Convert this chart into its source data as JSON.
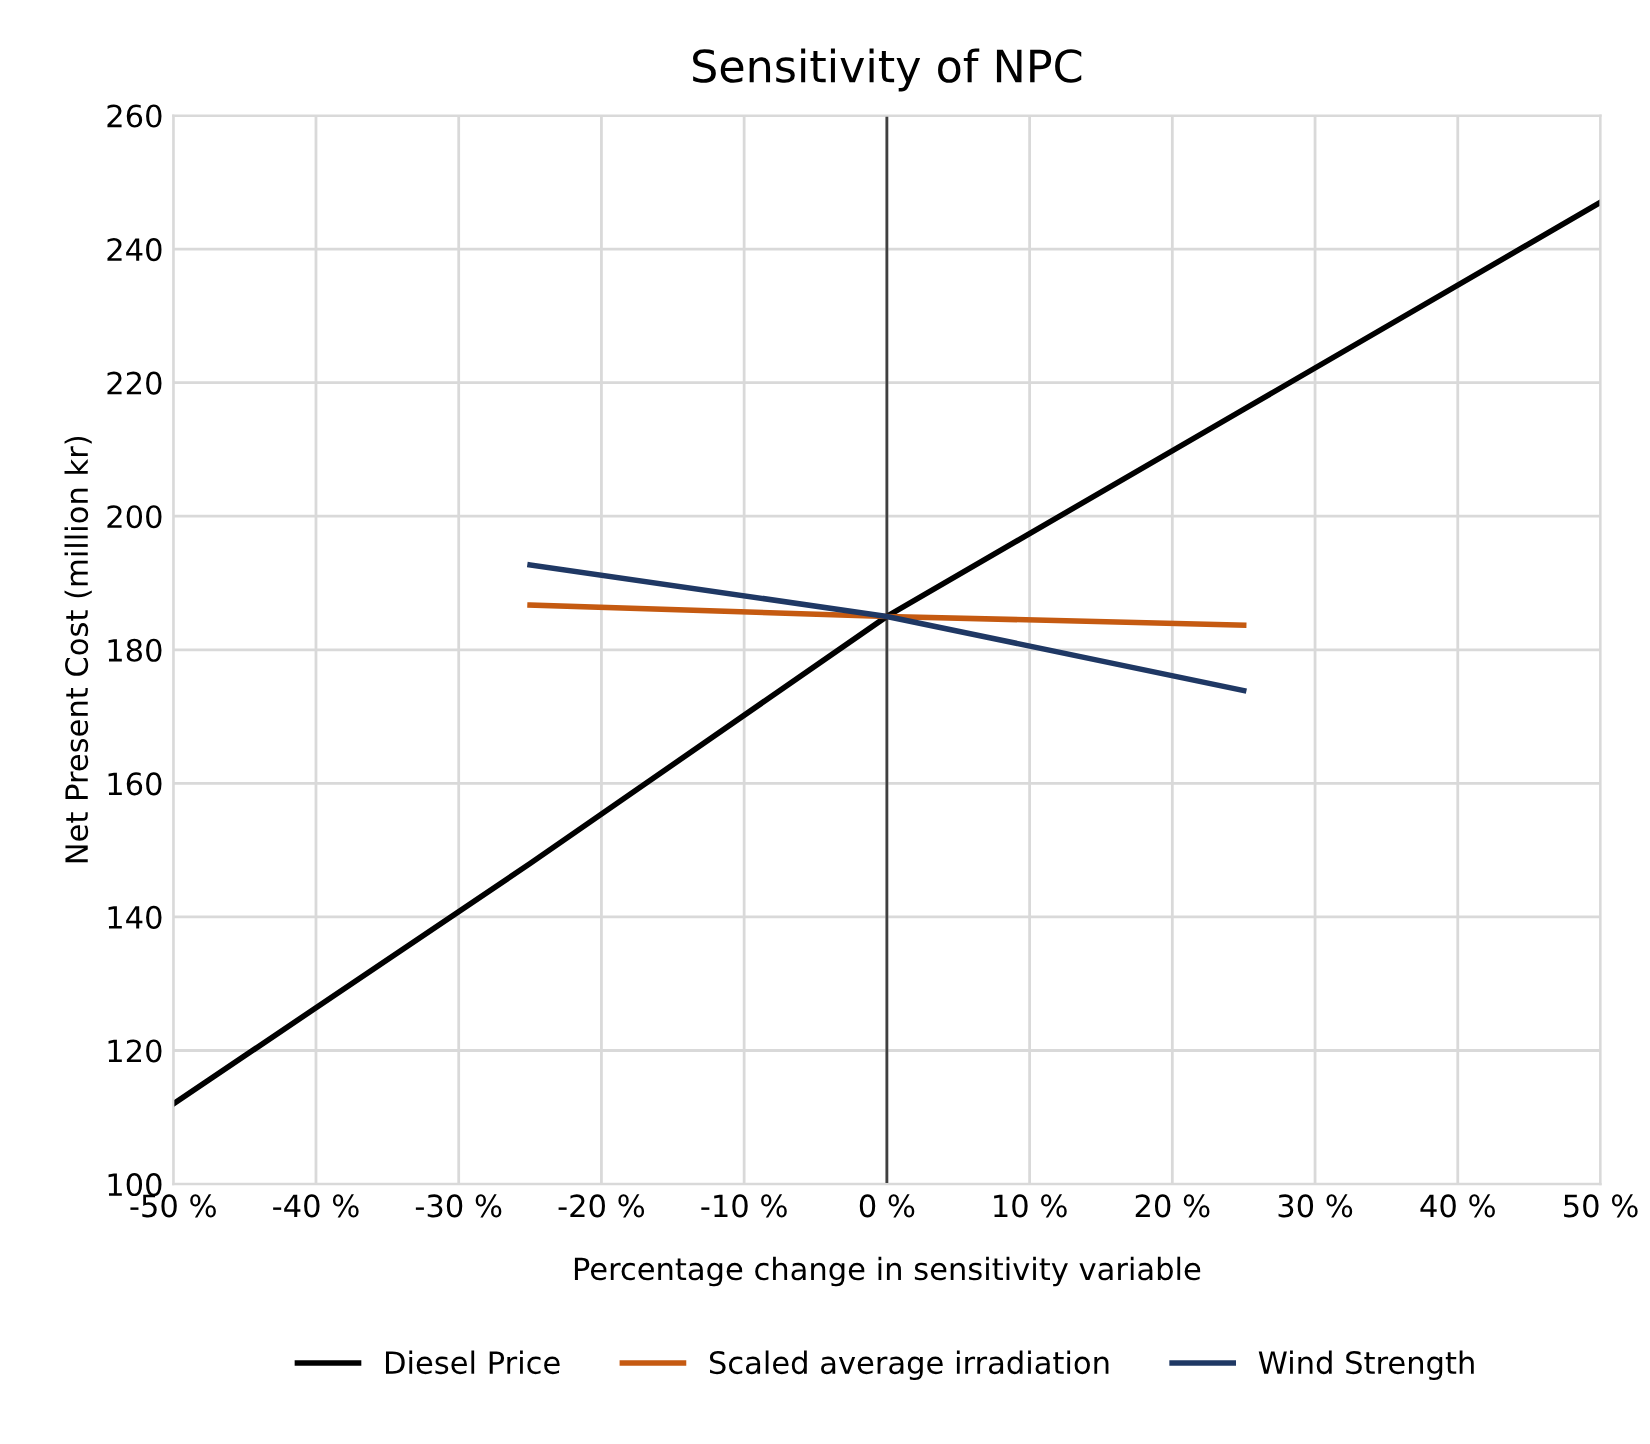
{
  "chart_data": {
    "type": "line",
    "title": "Sensitivity of NPC",
    "xlabel": "Percentage change in sensitivity variable",
    "ylabel": "Net Present Cost (million kr)",
    "series": [
      {
        "name": "Diesel Price",
        "color": "#000000",
        "x": [
          -50,
          -25,
          0,
          25,
          50
        ],
        "values": [
          112,
          148,
          185,
          216,
          247
        ]
      },
      {
        "name": "Scaled average irradiation",
        "color": "#c55a11",
        "x": [
          -25,
          0,
          25
        ],
        "values": [
          186.7,
          185,
          183.7
        ]
      },
      {
        "name": "Wind Strength",
        "color": "#1f3864",
        "x": [
          -25,
          0,
          25
        ],
        "values": [
          192.7,
          185,
          173.9
        ]
      }
    ],
    "xlim": [
      -50,
      50
    ],
    "xticks": [
      {
        "value": -50,
        "label": "-50 %"
      },
      {
        "value": -40,
        "label": "-40 %"
      },
      {
        "value": -30,
        "label": "-30 %"
      },
      {
        "value": -20,
        "label": "-20 %"
      },
      {
        "value": -10,
        "label": "-10 %"
      },
      {
        "value": 0,
        "label": "0 %"
      },
      {
        "value": 10,
        "label": "10 %"
      },
      {
        "value": 20,
        "label": "20 %"
      },
      {
        "value": 30,
        "label": "30 %"
      },
      {
        "value": 40,
        "label": "40 %"
      },
      {
        "value": 50,
        "label": "50 %"
      }
    ],
    "ylim": [
      100,
      260
    ],
    "yticks": [
      100,
      120,
      140,
      160,
      180,
      200,
      220,
      240,
      260
    ],
    "grid": true,
    "legend": "bottom",
    "marker": "none",
    "line_style": "solid"
  }
}
